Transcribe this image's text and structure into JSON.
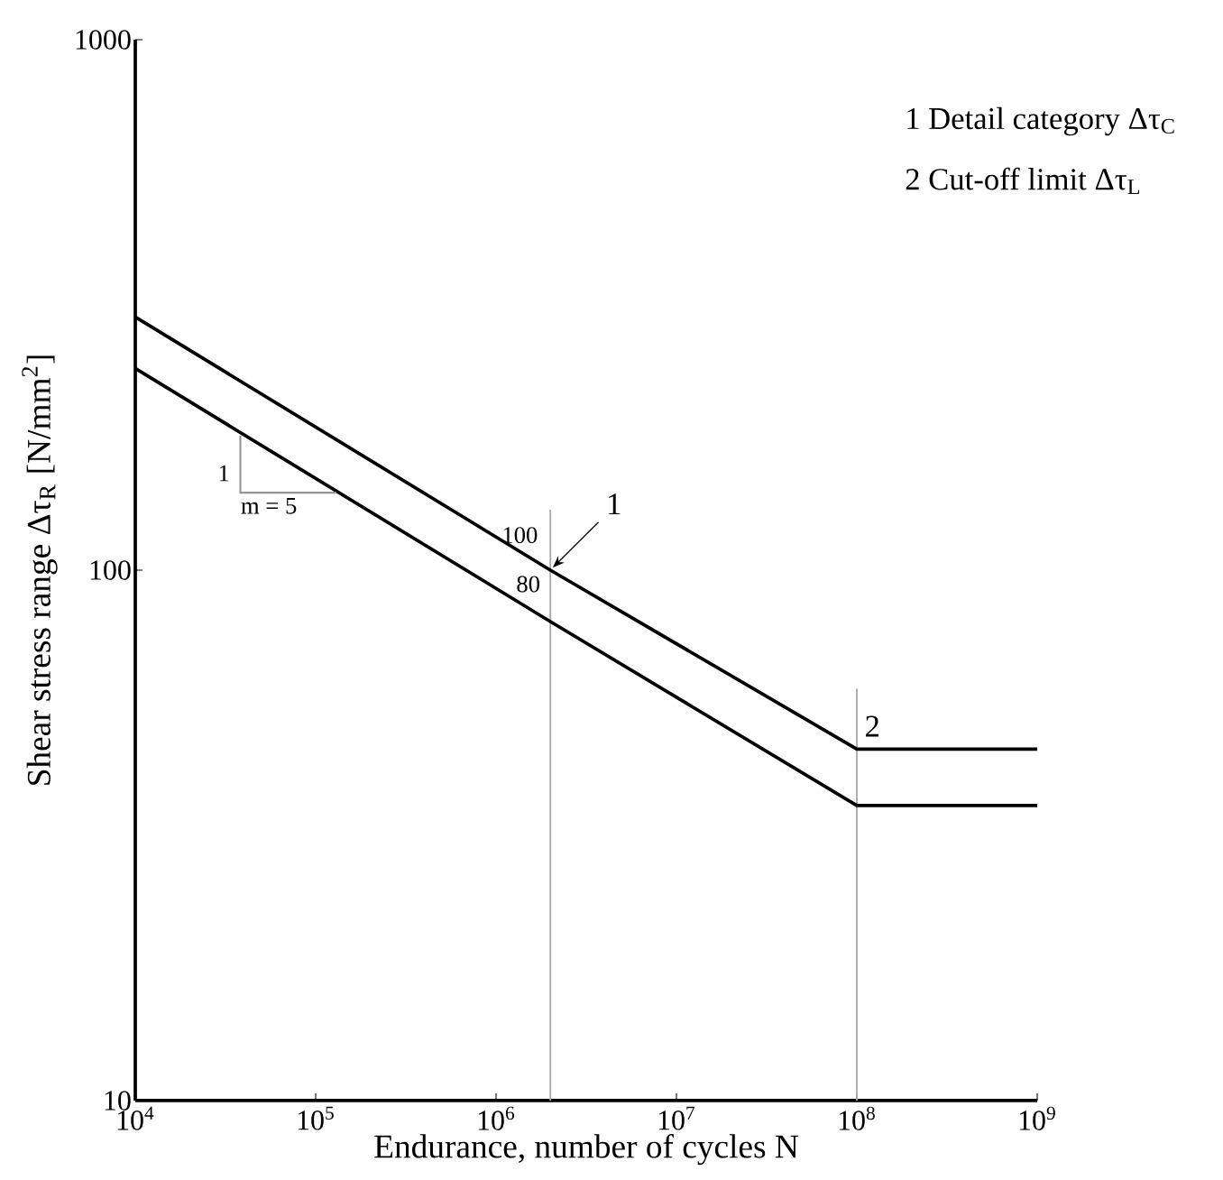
{
  "chart_data": {
    "type": "line",
    "xlabel": "Endurance, number of cycles N",
    "ylabel": "Shear stress range Δτ$_{R}$ [N/mm$^{2}$]",
    "log": "xy",
    "xlim": [
      10000,
      1000000000
    ],
    "ylim": [
      10,
      1000
    ],
    "xticks": [
      {
        "value": 10000,
        "label": "10$^{4}$"
      },
      {
        "value": 100000,
        "label": "10$^{5}$"
      },
      {
        "value": 1000000,
        "label": "10$^{6}$"
      },
      {
        "value": 10000000,
        "label": "10$^{7}$"
      },
      {
        "value": 100000000,
        "label": "10$^{8}$"
      },
      {
        "value": 1000000000,
        "label": "10$^{9}$"
      }
    ],
    "yticks": [
      10,
      100,
      1000
    ],
    "series": [
      {
        "color": "#000000",
        "x": [
          10000,
          2000000,
          100000000,
          1000000000
        ],
        "values": [
          300,
          100,
          46,
          46
        ]
      },
      {
        "color": "#000000",
        "x": [
          10000,
          2000000,
          100000000,
          1000000000
        ],
        "values": [
          240,
          80,
          36,
          36
        ]
      }
    ],
    "ref_lines": [
      {
        "axis": "x",
        "value": 2000000,
        "color": "#aaaaaa"
      },
      {
        "axis": "x",
        "value": 100000000,
        "color": "#aaaaaa"
      }
    ],
    "annotations": [
      "1 Detail category Δτ$_{C}$",
      "2 Cut-off limit Δτ$_{L}$",
      {
        "text": "100",
        "x": 2000000,
        "y": 100
      },
      {
        "text": "80",
        "x": 2000000,
        "y": 80
      },
      {
        "text": "1",
        "x": 2000000,
        "y": 100
      },
      {
        "text": "2",
        "x": 100000000,
        "y": 46
      },
      {
        "text": "1",
        "x": 38000,
        "y": 180
      },
      {
        "text": "m = 5",
        "x": 130000,
        "y": 140
      }
    ]
  }
}
